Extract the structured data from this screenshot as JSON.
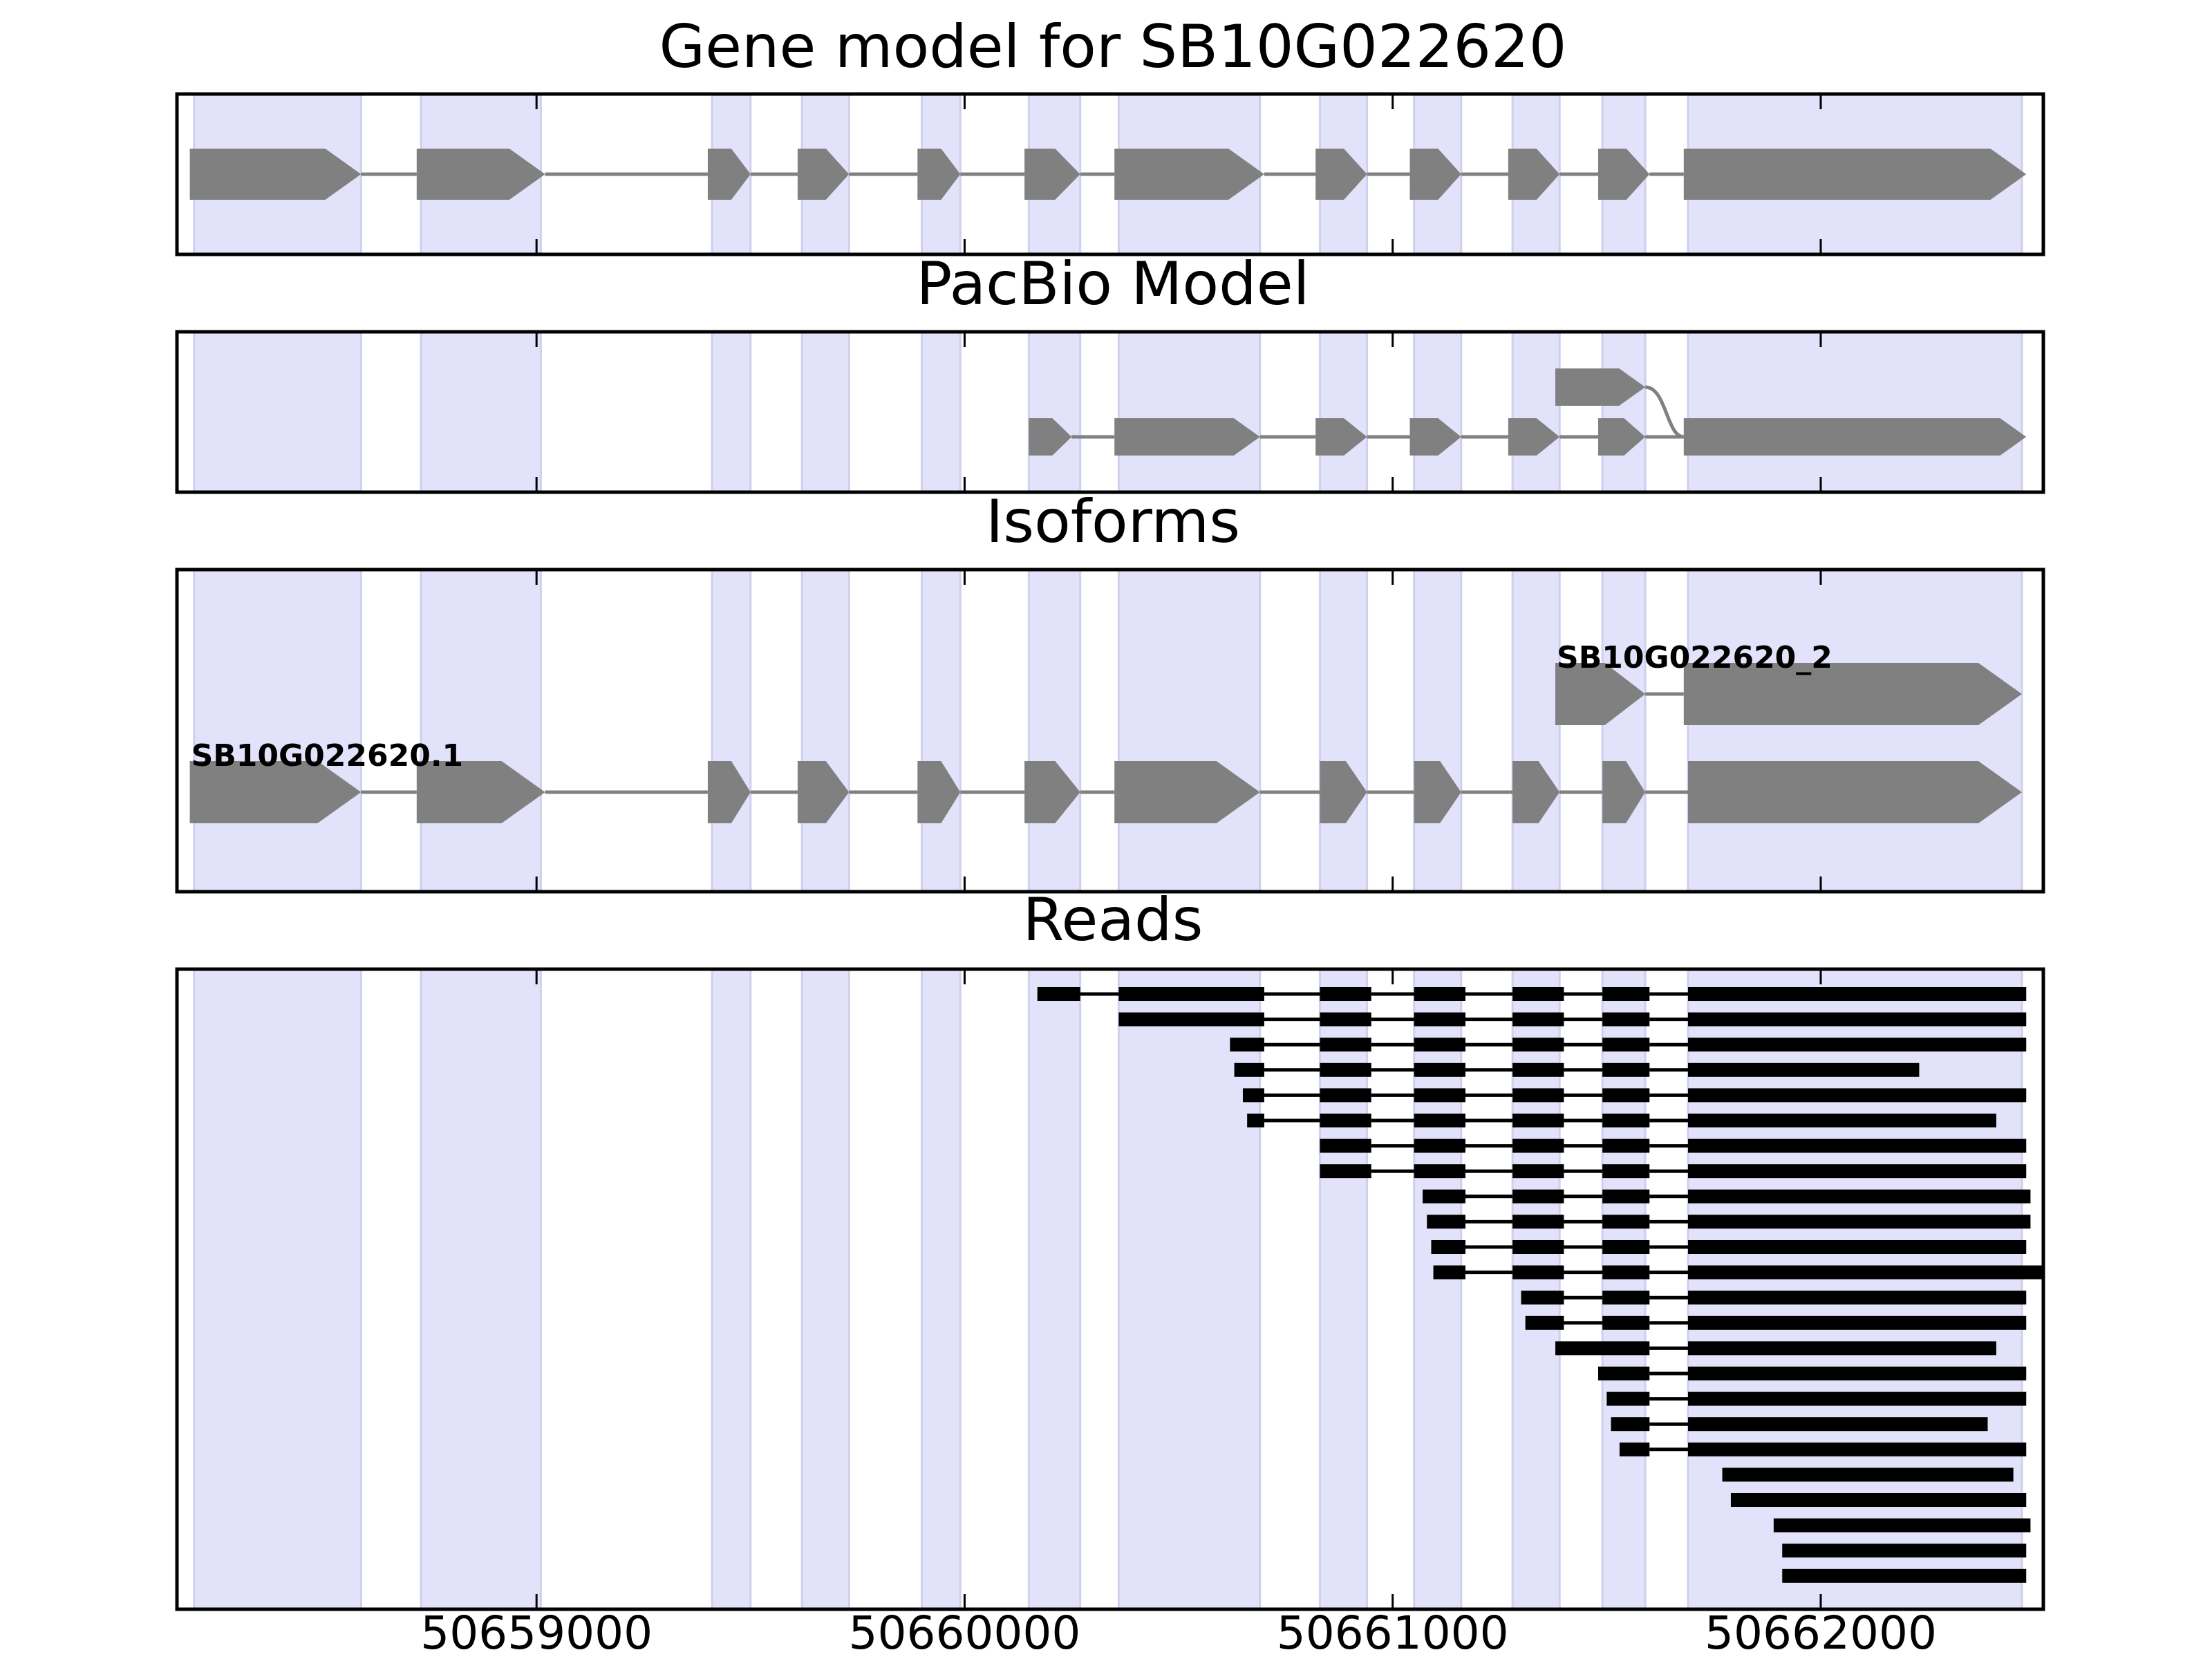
{
  "figure": {
    "panels": [
      {
        "id": "gene",
        "title": "Gene model for SB10G022620"
      },
      {
        "id": "pacbio",
        "title": "PacBio Model"
      },
      {
        "id": "isoforms",
        "title": "Isoforms"
      },
      {
        "id": "reads",
        "title": "Reads"
      }
    ]
  },
  "chart_data": {
    "type": "gene-structure",
    "xlim": [
      50658160,
      50662520
    ],
    "x_ticks": [
      50659000,
      50660000,
      50661000,
      50662000
    ],
    "x_tick_labels": [
      "50659000",
      "50660000",
      "50661000",
      "50662000"
    ],
    "grid": false,
    "colors": {
      "exon_shading": "#e2e2fb",
      "feature": "#808080",
      "read": "#000000",
      "axis": "#000000"
    },
    "exon_regions": [
      [
        50658200,
        50658590
      ],
      [
        50658730,
        50659010
      ],
      [
        50659410,
        50659500
      ],
      [
        50659620,
        50659730
      ],
      [
        50659900,
        50659990
      ],
      [
        50660150,
        50660270
      ],
      [
        50660360,
        50660690
      ],
      [
        50660830,
        50660940
      ],
      [
        50661050,
        50661160
      ],
      [
        50661280,
        50661390
      ],
      [
        50661490,
        50661590
      ],
      [
        50661690,
        50662470
      ]
    ],
    "gene_model": {
      "exons": [
        [
          50658190,
          50658590
        ],
        [
          50658720,
          50659020
        ],
        [
          50659400,
          50659500
        ],
        [
          50659610,
          50659730
        ],
        [
          50659890,
          50659990
        ],
        [
          50660140,
          50660270
        ],
        [
          50660350,
          50660700
        ],
        [
          50660820,
          50660940
        ],
        [
          50661040,
          50661160
        ],
        [
          50661270,
          50661390
        ],
        [
          50661480,
          50661600
        ],
        [
          50661680,
          50662480
        ]
      ],
      "strand": "+"
    },
    "pacbio_model": [
      {
        "exons": [
          [
            50661380,
            50661590
          ]
        ],
        "strand": "+",
        "connects_to_next_exon": true
      },
      {
        "exons": [
          [
            50660150,
            50660250
          ],
          [
            50660350,
            50660690
          ],
          [
            50660820,
            50660940
          ],
          [
            50661040,
            50661160
          ],
          [
            50661270,
            50661390
          ],
          [
            50661480,
            50661590
          ],
          [
            50661680,
            50662480
          ]
        ],
        "strand": "+"
      }
    ],
    "isoforms": [
      {
        "name": "SB10G022620_2",
        "exons": [
          [
            50661380,
            50661590
          ],
          [
            50661680,
            50662470
          ]
        ],
        "strand": "+"
      },
      {
        "name": "SB10G022620.1",
        "exons": [
          [
            50658190,
            50658590
          ],
          [
            50658720,
            50659020
          ],
          [
            50659400,
            50659500
          ],
          [
            50659610,
            50659730
          ],
          [
            50659890,
            50659990
          ],
          [
            50660140,
            50660270
          ],
          [
            50660350,
            50660690
          ],
          [
            50660830,
            50660940
          ],
          [
            50661050,
            50661160
          ],
          [
            50661280,
            50661390
          ],
          [
            50661490,
            50661590
          ],
          [
            50661690,
            50662470
          ]
        ],
        "strand": "+"
      }
    ],
    "reads": [
      [
        [
          50660170,
          50660270
        ],
        [
          50660360,
          50660700
        ],
        [
          50660830,
          50660950
        ],
        [
          50661050,
          50661170
        ],
        [
          50661280,
          50661400
        ],
        [
          50661490,
          50661600
        ],
        [
          50661690,
          50662480
        ]
      ],
      [
        [
          50660360,
          50660700
        ],
        [
          50660830,
          50660950
        ],
        [
          50661050,
          50661170
        ],
        [
          50661280,
          50661400
        ],
        [
          50661490,
          50661600
        ],
        [
          50661690,
          50662480
        ]
      ],
      [
        [
          50660620,
          50660700
        ],
        [
          50660830,
          50660950
        ],
        [
          50661050,
          50661170
        ],
        [
          50661280,
          50661400
        ],
        [
          50661490,
          50661600
        ],
        [
          50661690,
          50662480
        ]
      ],
      [
        [
          50660630,
          50660700
        ],
        [
          50660830,
          50660950
        ],
        [
          50661050,
          50661170
        ],
        [
          50661280,
          50661400
        ],
        [
          50661490,
          50661600
        ],
        [
          50661690,
          50662230
        ]
      ],
      [
        [
          50660650,
          50660700
        ],
        [
          50660830,
          50660950
        ],
        [
          50661050,
          50661170
        ],
        [
          50661280,
          50661400
        ],
        [
          50661490,
          50661600
        ],
        [
          50661690,
          50662480
        ]
      ],
      [
        [
          50660660,
          50660700
        ],
        [
          50660830,
          50660950
        ],
        [
          50661050,
          50661170
        ],
        [
          50661280,
          50661400
        ],
        [
          50661490,
          50661600
        ],
        [
          50661690,
          50662410
        ]
      ],
      [
        [
          50660830,
          50660950
        ],
        [
          50661050,
          50661170
        ],
        [
          50661280,
          50661400
        ],
        [
          50661490,
          50661600
        ],
        [
          50661690,
          50662480
        ]
      ],
      [
        [
          50660830,
          50660950
        ],
        [
          50661050,
          50661170
        ],
        [
          50661280,
          50661400
        ],
        [
          50661490,
          50661600
        ],
        [
          50661690,
          50662480
        ]
      ],
      [
        [
          50661070,
          50661170
        ],
        [
          50661280,
          50661400
        ],
        [
          50661490,
          50661600
        ],
        [
          50661690,
          50662490
        ]
      ],
      [
        [
          50661080,
          50661170
        ],
        [
          50661280,
          50661400
        ],
        [
          50661490,
          50661600
        ],
        [
          50661690,
          50662490
        ]
      ],
      [
        [
          50661090,
          50661170
        ],
        [
          50661280,
          50661400
        ],
        [
          50661490,
          50661600
        ],
        [
          50661690,
          50662480
        ]
      ],
      [
        [
          50661095,
          50661170
        ],
        [
          50661280,
          50661400
        ],
        [
          50661490,
          50661600
        ],
        [
          50661690,
          50662520
        ]
      ],
      [
        [
          50661300,
          50661400
        ],
        [
          50661490,
          50661600
        ],
        [
          50661690,
          50662480
        ]
      ],
      [
        [
          50661310,
          50661400
        ],
        [
          50661490,
          50661600
        ],
        [
          50661690,
          50662480
        ]
      ],
      [
        [
          50661380,
          50661600
        ],
        [
          50661690,
          50662410
        ]
      ],
      [
        [
          50661480,
          50661600
        ],
        [
          50661690,
          50662480
        ]
      ],
      [
        [
          50661500,
          50661600
        ],
        [
          50661690,
          50662480
        ]
      ],
      [
        [
          50661510,
          50661600
        ],
        [
          50661690,
          50662390
        ]
      ],
      [
        [
          50661530,
          50661600
        ],
        [
          50661690,
          50662480
        ]
      ],
      [
        [
          50661770,
          50662450
        ]
      ],
      [
        [
          50661790,
          50662480
        ]
      ],
      [
        [
          50661890,
          50662490
        ]
      ],
      [
        [
          50661910,
          50662480
        ]
      ],
      [
        [
          50661910,
          50662480
        ]
      ]
    ]
  }
}
